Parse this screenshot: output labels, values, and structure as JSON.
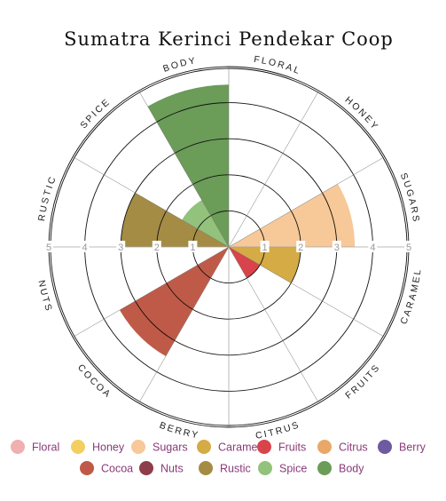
{
  "chart_data": {
    "type": "polar-area",
    "title": "Sumatra Kerinci Pendekar Coop",
    "rlim": [
      0,
      5
    ],
    "r_ticks": [
      "1",
      "2",
      "3",
      "4",
      "5"
    ],
    "categories": [
      "Floral",
      "Honey",
      "Sugars",
      "Caramel",
      "Fruits",
      "Citrus",
      "Berry",
      "Cocoa",
      "Nuts",
      "Rustic",
      "Spice",
      "Body"
    ],
    "values": [
      0,
      0,
      3.5,
      2.0,
      1.0,
      0,
      0,
      3.5,
      0,
      3.0,
      1.5,
      4.5
    ],
    "colors": [
      "#f0b0b0",
      "#f2cf60",
      "#f7c898",
      "#d4ab45",
      "#d9434b",
      "#e9a868",
      "#6e5aa0",
      "#c05a48",
      "#8e3e48",
      "#a48c45",
      "#92c27c",
      "#6b9c58"
    ],
    "grid": true,
    "legend_position": "bottom"
  }
}
